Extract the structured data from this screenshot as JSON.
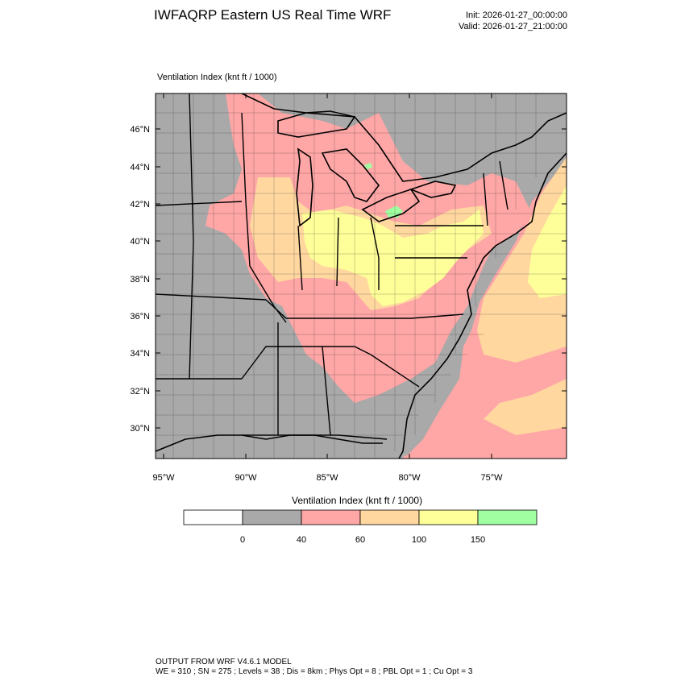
{
  "header": {
    "title": "IWFAQRP Eastern US Real Time WRF",
    "init": "Init: 2026-01-27_00:00:00",
    "valid": "Valid: 2026-01-27_21:00:00"
  },
  "plot": {
    "field_label": "Ventilation Index   (knt ft / 1000)",
    "lat_ticks": [
      "46°N",
      "44°N",
      "42°N",
      "40°N",
      "38°N",
      "36°N",
      "34°N",
      "32°N",
      "30°N"
    ],
    "lon_ticks": [
      "95°W",
      "90°W",
      "85°W",
      "80°W",
      "75°W"
    ]
  },
  "colorbar": {
    "title": "Ventilation Index  (knt ft / 1000)",
    "colors": [
      "#ffffff",
      "#a9a9a9",
      "#ffa6a6",
      "#ffd79f",
      "#ffff99",
      "#a0ffa0"
    ],
    "labels": [
      "0",
      "40",
      "60",
      "100",
      "150"
    ]
  },
  "footer": {
    "line1": "OUTPUT FROM WRF V4.6.1 MODEL",
    "line2": "WE = 310 ; SN = 275 ; Levels = 38 ; Dis = 8km ; Phys Opt = 8 ; PBL Opt = 1 ; Cu Opt = 3"
  }
}
